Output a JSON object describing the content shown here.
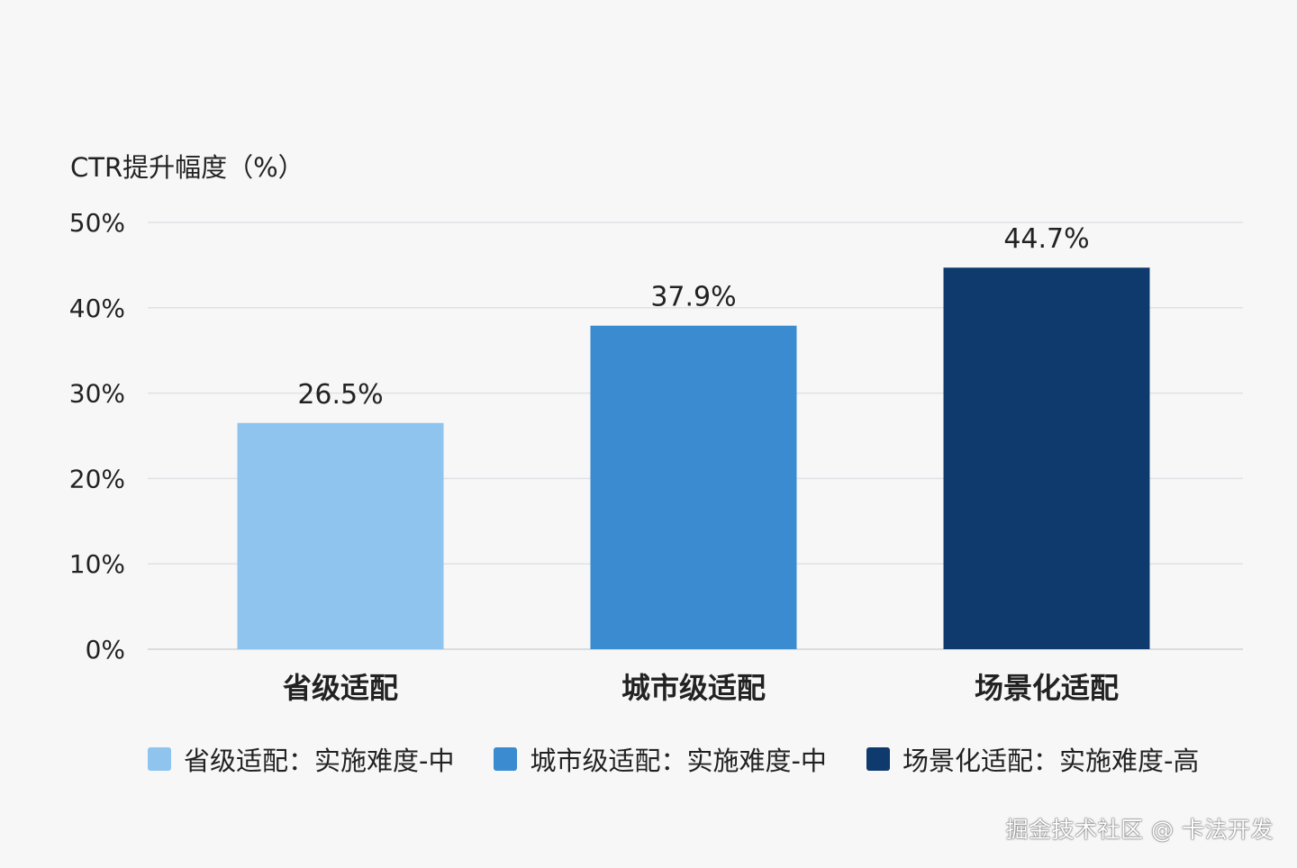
{
  "chart_data": {
    "type": "bar",
    "ylabel": "CTR提升幅度（%）",
    "ylim": [
      0,
      50
    ],
    "yticks": [
      0,
      10,
      20,
      30,
      40,
      50
    ],
    "ytick_labels": [
      "0%",
      "10%",
      "20%",
      "30%",
      "40%",
      "50%"
    ],
    "categories": [
      "省级适配",
      "城市级适配",
      "场景化适配"
    ],
    "values": [
      26.5,
      37.9,
      44.7
    ],
    "value_labels": [
      "26.5%",
      "37.9%",
      "44.7%"
    ],
    "colors": [
      "#8ec4ee",
      "#3a8bd0",
      "#0f3a6e"
    ],
    "grid": true,
    "legend": {
      "position": "bottom",
      "entries": [
        "省级适配：实施难度-中",
        "城市级适配：实施难度-中",
        "场景化适配：实施难度-高"
      ]
    }
  },
  "watermark": "掘金技术社区 @ 卡法开发"
}
